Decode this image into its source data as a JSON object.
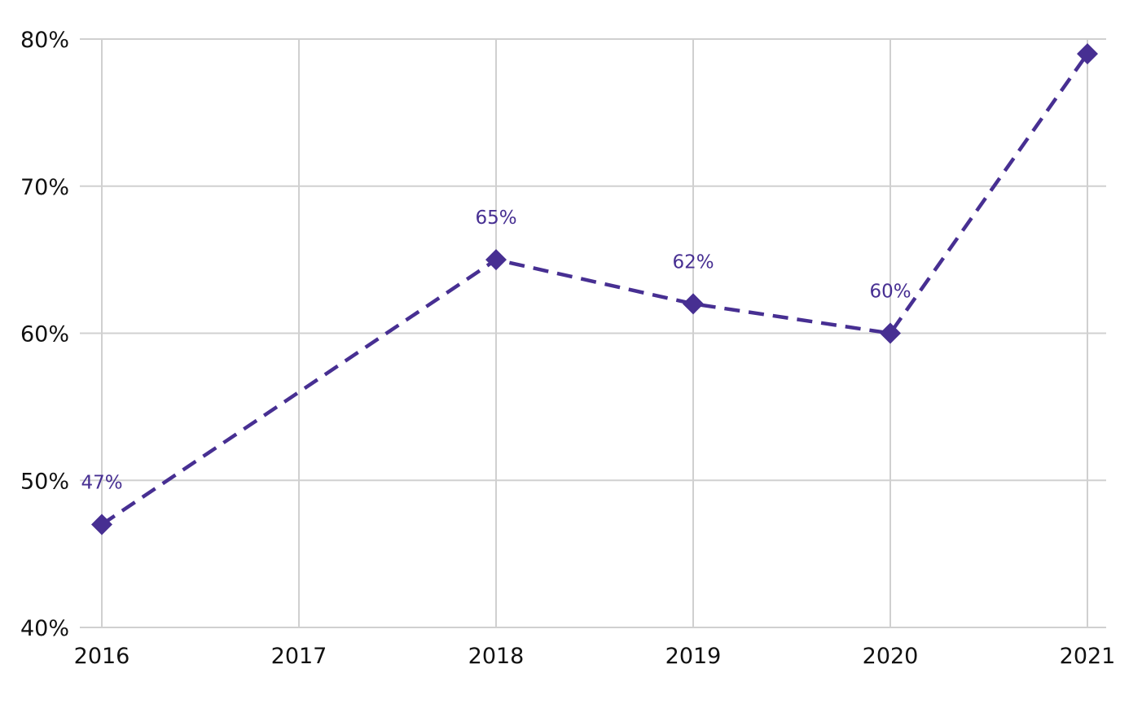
{
  "chart_data": {
    "type": "line",
    "x": [
      "2016",
      "2017",
      "2018",
      "2019",
      "2020",
      "2021"
    ],
    "y_tick_labels": [
      "80%",
      "70%",
      "60%",
      "50%",
      "40%"
    ],
    "y_ticks": [
      80,
      70,
      60,
      50,
      40
    ],
    "ylim": [
      40,
      80
    ],
    "grid": true,
    "series": [
      {
        "values": [
          47,
          null,
          65,
          62,
          60,
          79
        ],
        "data_labels": [
          "47%",
          null,
          "65%",
          "62%",
          "60%",
          null
        ],
        "line_style": "dashed",
        "marker": "diamond"
      }
    ],
    "colors": {
      "series": "#472f92",
      "grid": "#d0d0d0",
      "text": "#111111"
    }
  }
}
